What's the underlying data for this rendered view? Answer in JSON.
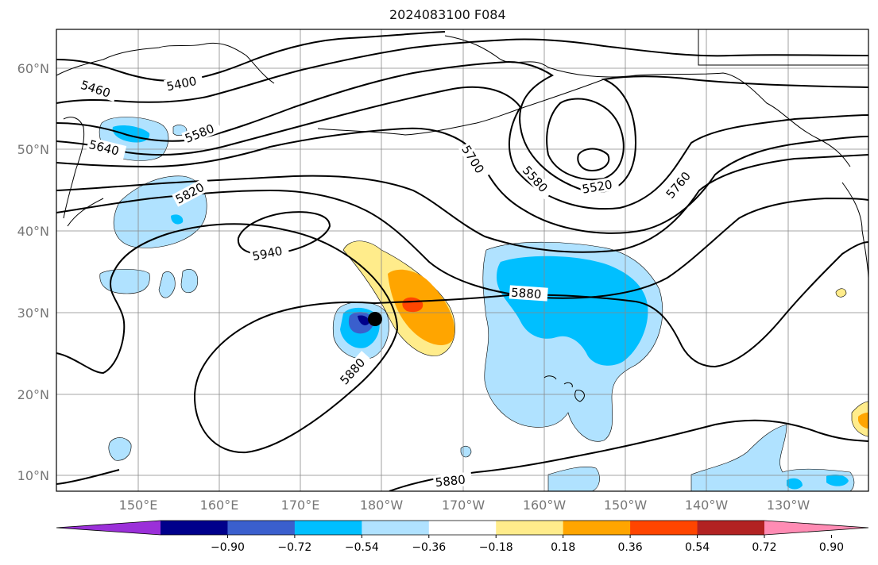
{
  "title": "2024083100 F084",
  "map": {
    "lat_labels": [
      "60°N",
      "50°N",
      "40°N",
      "30°N",
      "20°N",
      "10°N"
    ],
    "lon_labels": [
      "150°E",
      "160°E",
      "170°E",
      "180°W",
      "170°W",
      "160°W",
      "150°W",
      "140°W",
      "130°W"
    ],
    "contour_labels": [
      "5400",
      "5460",
      "5580",
      "5640",
      "5820",
      "5940",
      "5700",
      "5580",
      "5520",
      "5760",
      "5880",
      "5880",
      "5880"
    ],
    "storm_marker": "storm-center-marker"
  },
  "colorbar": {
    "ticks": [
      "−0.90",
      "−0.72",
      "−0.54",
      "−0.36",
      "−0.18",
      "0.18",
      "0.36",
      "0.54",
      "0.72",
      "0.90"
    ],
    "colors": [
      "#9b30d9",
      "#00008b",
      "#3a5fcd",
      "#00bfff",
      "#b0e2ff",
      "#ffffff",
      "#ffec8b",
      "#ffa500",
      "#ff4500",
      "#b22222",
      "#ff8cb4"
    ]
  },
  "colors": {
    "contour": "#000000",
    "grid": "#888888",
    "axis_text": "#777777"
  }
}
